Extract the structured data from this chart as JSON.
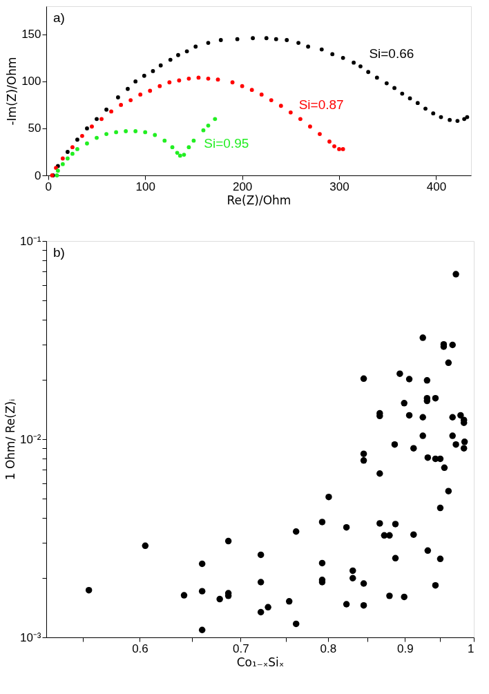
{
  "chart_data": [
    {
      "type": "scatter",
      "xlabel": "Re(Z)/Ohm",
      "ylabel": "-Im(Z)/Ohm",
      "xlim": [
        -2,
        436
      ],
      "ylim": [
        0,
        180
      ],
      "xticks": [
        0,
        100,
        200,
        300,
        400
      ],
      "yticks": [
        0,
        50,
        100,
        150
      ],
      "grid": false,
      "legend": false,
      "marker": "circle",
      "annotations": [
        "a)"
      ],
      "series": [
        {
          "name": "Si=0.66",
          "color": "#000000",
          "x": [
            5,
            10,
            20,
            30,
            40,
            50,
            60,
            72,
            82,
            90,
            99,
            108,
            116,
            126,
            134,
            143,
            152,
            165,
            178,
            195,
            211,
            225,
            235,
            246,
            258,
            268,
            282,
            293,
            304,
            315,
            322,
            330,
            339,
            349,
            357,
            365,
            373,
            381,
            389,
            397,
            405,
            414,
            422,
            429,
            432
          ],
          "values": [
            0,
            10,
            25,
            38,
            50,
            60,
            70,
            83,
            92,
            100,
            106,
            111,
            117,
            123,
            128,
            132,
            137,
            141,
            144,
            145,
            146,
            146,
            145,
            144,
            141,
            137,
            134,
            129,
            125,
            120,
            116,
            110,
            104,
            98,
            93,
            87,
            82,
            77,
            71,
            66,
            62,
            59,
            58,
            60,
            62
          ]
        },
        {
          "name": "Si=0.87",
          "color": "#ff0000",
          "x": [
            4,
            8,
            15,
            25,
            35,
            45,
            55,
            65,
            75,
            85,
            95,
            105,
            115,
            125,
            135,
            145,
            155,
            165,
            175,
            190,
            200,
            210,
            220,
            230,
            240,
            250,
            260,
            270,
            280,
            290,
            295,
            300,
            304
          ],
          "values": [
            0,
            8,
            18,
            30,
            42,
            52,
            60,
            68,
            75,
            80,
            86,
            90,
            95,
            99,
            101,
            103,
            104,
            103,
            102,
            99,
            95,
            91,
            86,
            80,
            74,
            67,
            60,
            52,
            44,
            36,
            31,
            28,
            28
          ]
        },
        {
          "name": "Si=0.95",
          "color": "#22ee22",
          "x": [
            9,
            10,
            15,
            20,
            25,
            30,
            40,
            50,
            60,
            70,
            80,
            90,
            100,
            110,
            120,
            128,
            133,
            136,
            140,
            145,
            150,
            160,
            165,
            172
          ],
          "values": [
            0,
            5,
            12,
            18,
            23,
            28,
            34,
            40,
            44,
            46,
            47,
            47,
            46,
            43,
            37,
            30,
            24,
            21,
            22,
            30,
            37,
            48,
            53,
            60
          ]
        }
      ]
    },
    {
      "type": "scatter",
      "xlabel": "Co₁₋ₓSiₓ",
      "ylabel": "1 Ohm/ Re(Z)ᵢ",
      "log": "xy",
      "grid": false,
      "legend": false,
      "marker": "circle",
      "annotations": [
        "b)"
      ],
      "xlim": [
        0.52,
        1
      ],
      "ylim": [
        0.001,
        0.1
      ],
      "xticks": [
        {
          "value": 0.55,
          "label": null
        },
        0.6,
        {
          "value": 0.65,
          "label": null
        },
        0.7,
        {
          "value": 0.75,
          "label": null
        },
        0.8,
        {
          "value": 0.85,
          "label": null
        },
        0.9,
        {
          "value": 0.95,
          "label": null
        },
        1
      ],
      "yticks": [
        {
          "value": 0.001,
          "label": "10⁻³"
        },
        {
          "value": 0.002,
          "label": null
        },
        {
          "value": 0.003,
          "label": null
        },
        {
          "value": 0.004,
          "label": null
        },
        {
          "value": 0.005,
          "label": null
        },
        {
          "value": 0.006,
          "label": null
        },
        {
          "value": 0.007,
          "label": null
        },
        {
          "value": 0.008,
          "label": null
        },
        {
          "value": 0.009,
          "label": null
        },
        {
          "value": 0.01,
          "label": "10⁻²"
        },
        {
          "value": 0.02,
          "label": null
        },
        {
          "value": 0.03,
          "label": null
        },
        {
          "value": 0.04,
          "label": null
        },
        {
          "value": 0.05,
          "label": null
        },
        {
          "value": 0.06,
          "label": null
        },
        {
          "value": 0.07,
          "label": null
        },
        {
          "value": 0.08,
          "label": null
        },
        {
          "value": 0.09,
          "label": null
        },
        {
          "value": 0.1,
          "label": "10⁻¹"
        }
      ],
      "series": [
        {
          "color": "#000000",
          "x": [
            0.555,
            0.605,
            0.642,
            0.66,
            0.66,
            0.66,
            0.678,
            0.687,
            0.687,
            0.687,
            0.722,
            0.722,
            0.722,
            0.73,
            0.754,
            0.762,
            0.762,
            0.793,
            0.793,
            0.793,
            0.793,
            0.801,
            0.823,
            0.823,
            0.831,
            0.831,
            0.845,
            0.845,
            0.845,
            0.845,
            0.866,
            0.866,
            0.872,
            0.879,
            0.879,
            0.887,
            0.887,
            0.899,
            0.912,
            0.932,
            0.943,
            0.95,
            0.95,
            0.962,
            0.956,
            0.912,
            0.932,
            0.943,
            0.95,
            0.985,
            0.973,
            0.925,
            0.955,
            0.955,
            0.968,
            0.962,
            0.845,
            0.893,
            0.906,
            0.931,
            0.899,
            0.931,
            0.931,
            0.943,
            0.866,
            0.866,
            0.906,
            0.925,
            0.968,
            0.98,
            0.985,
            0.985,
            0.925,
            0.968,
            0.986,
            0.886,
            0.973
          ],
          "values": [
            0.00173,
            0.0029,
            0.00163,
            0.00235,
            0.00171,
            0.00109,
            0.00156,
            0.00306,
            0.00167,
            0.00162,
            0.00261,
            0.0019,
            0.00134,
            0.00142,
            0.00152,
            0.00342,
            0.00117,
            0.00382,
            0.00237,
            0.00195,
            0.0019,
            0.00511,
            0.00359,
            0.00147,
            0.00217,
            0.00199,
            0.00844,
            0.00781,
            0.00187,
            0.00145,
            0.00671,
            0.00376,
            0.00327,
            0.00327,
            0.00162,
            0.00373,
            0.00251,
            0.0016,
            0.0033,
            0.00274,
            0.00183,
            0.00249,
            0.0045,
            0.00547,
            0.00718,
            0.009,
            0.00807,
            0.00796,
            0.00796,
            0.009,
            0.068,
            0.0325,
            0.0301,
            0.0293,
            0.0299,
            0.0243,
            0.0202,
            0.0214,
            0.0201,
            0.0198,
            0.0152,
            0.0161,
            0.0156,
            0.0161,
            0.0135,
            0.0131,
            0.0132,
            0.0129,
            0.0129,
            0.0132,
            0.0125,
            0.0121,
            0.0104,
            0.0104,
            0.0097,
            0.0094,
            0.0094
          ]
        }
      ]
    }
  ]
}
